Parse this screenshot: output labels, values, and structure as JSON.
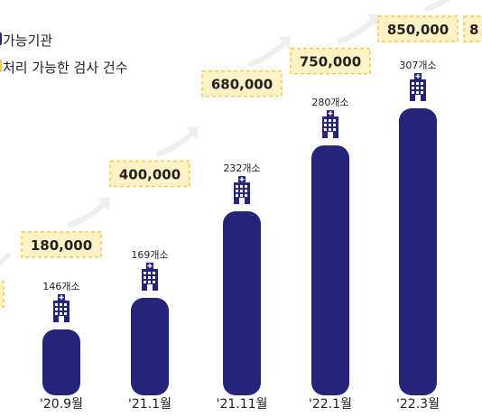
{
  "legend": {
    "facilities_label": "가능기관",
    "tests_label": "처리 가능한 검사 건수",
    "facilities_color": "#24247a",
    "tests_color": "#f2c94c"
  },
  "colors": {
    "bar": "#24247a",
    "tag_fill": "#fff3c6",
    "tag_border": "#f2c94c",
    "arrow": "#eeeeee",
    "text": "#222222"
  },
  "chart_data": {
    "type": "bar",
    "categories": [
      "'20.9월",
      "'21.1월",
      "'21.11월",
      "'22.1월",
      "'22.3월"
    ],
    "series": [
      {
        "name": "가능기관",
        "values": [
          146,
          169,
          232,
          280,
          307
        ],
        "labels": [
          "146개소",
          "169개소",
          "232개소",
          "280개소",
          "307개소"
        ]
      },
      {
        "name": "처리 가능한 검사 건수",
        "values": [
          180000,
          400000,
          680000,
          750000,
          850000
        ],
        "labels": [
          "180,000",
          "400,000",
          "680,000",
          "750,000",
          "850,000"
        ]
      }
    ],
    "partial_left_tag": "",
    "partial_right_tag": "8"
  }
}
